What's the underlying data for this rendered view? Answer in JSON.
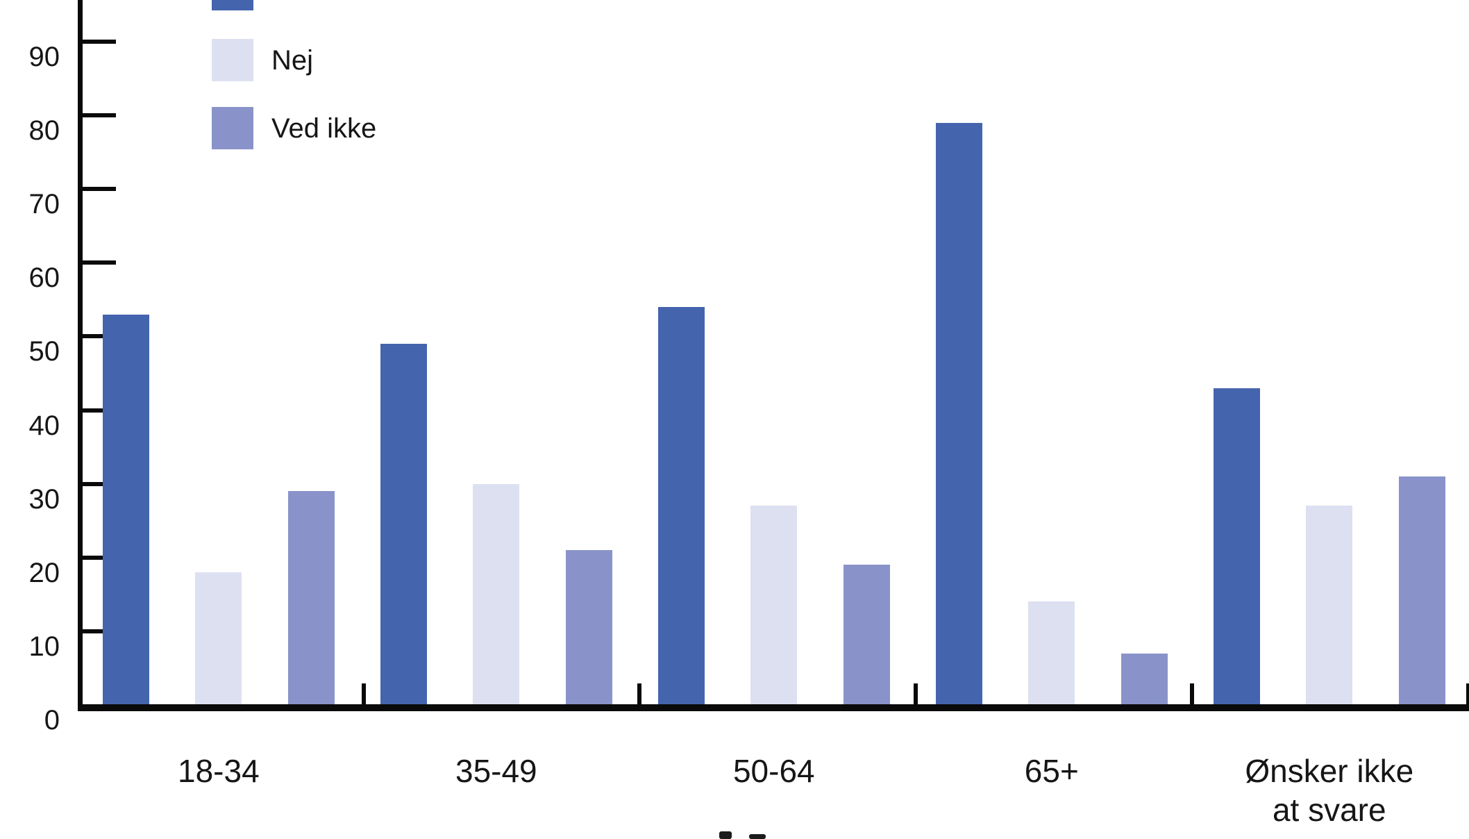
{
  "chart_data": {
    "type": "bar",
    "title": "",
    "categories": [
      "18-34",
      "35-49",
      "50-64",
      "65+",
      "Ønsker ikke\nat svare"
    ],
    "series": [
      {
        "label": "",
        "legend_label_visible": false,
        "color": "#4564AE",
        "values": [
          53,
          49,
          54,
          79,
          43
        ]
      },
      {
        "label": "Nej",
        "legend_label_visible": true,
        "color": "#DDE0F1",
        "values": [
          18,
          30,
          27,
          14,
          27
        ]
      },
      {
        "label": "Ved ikke",
        "legend_label_visible": true,
        "color": "#8A93C9",
        "values": [
          29,
          21,
          19,
          7,
          31
        ]
      }
    ],
    "y_axis": {
      "tick_labels": [
        "0",
        "10",
        "20",
        "30",
        "40",
        "50",
        "60",
        "70",
        "80",
        "90"
      ],
      "ticks": [
        0,
        10,
        20,
        30,
        40,
        50,
        60,
        70,
        80,
        90
      ],
      "ylim": [
        0,
        96
      ]
    },
    "grid": false,
    "legend_position": "top-left-inside",
    "legend_note": "first legend entry is cut off at the top edge of the image (swatch partially visible, label not visible)",
    "axis_color": "#0a0a0a",
    "background": "#FFFFFF",
    "bottom_edge_note": "tiny cropped marks of a cut-off axis title at bottom center"
  }
}
